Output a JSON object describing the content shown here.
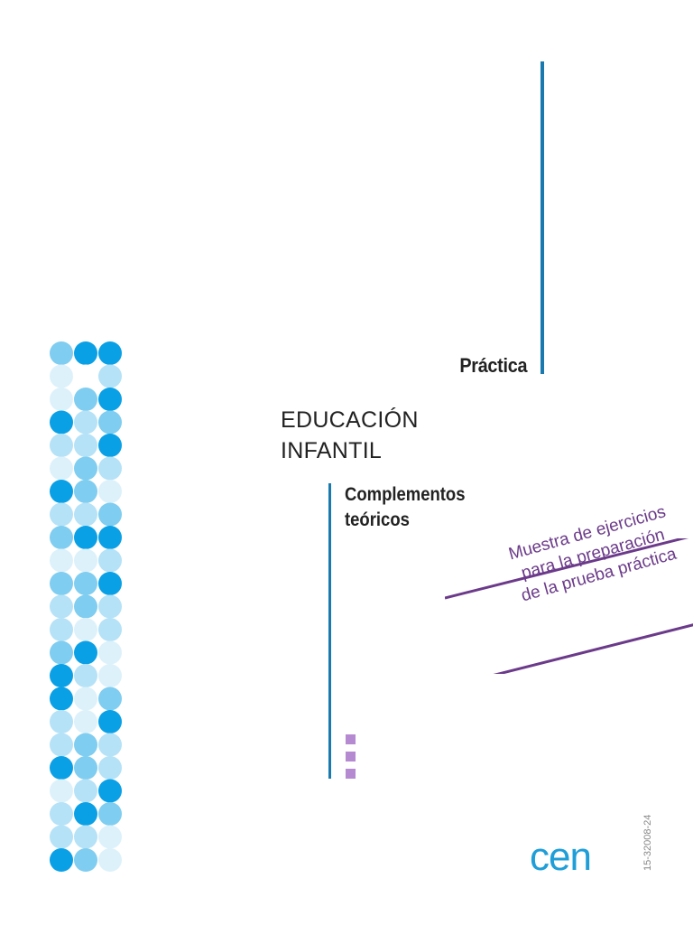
{
  "header": {
    "practica": "Práctica"
  },
  "title": {
    "line1": "EDUCACIÓN",
    "line2": "INFANTIL"
  },
  "subtitle": {
    "line1": "Complementos",
    "line2": "teóricos"
  },
  "stripe": {
    "line1": "Muestra de ejercicios",
    "line2": "para la preparación",
    "line3": "de la prueba práctica"
  },
  "publisher": {
    "logo": "cen",
    "code": "15-32008-24"
  },
  "colors": {
    "accent_blue": "#1a7ab0",
    "purple": "#6b3a8a",
    "logo_blue": "#1f9ed8"
  },
  "dot_pattern": {
    "rows": [
      [
        "mid",
        "dark",
        "dark"
      ],
      [
        "vlight",
        "",
        "light"
      ],
      [
        "vlight",
        "mid",
        "dark"
      ],
      [
        "dark",
        "light",
        "mid"
      ],
      [
        "light",
        "light",
        "dark"
      ],
      [
        "vlight",
        "mid",
        "light"
      ],
      [
        "dark",
        "mid",
        "vlight"
      ],
      [
        "light",
        "light",
        "mid"
      ],
      [
        "mid",
        "dark",
        "dark"
      ],
      [
        "vlight",
        "vlight",
        "light"
      ],
      [
        "mid",
        "mid",
        "dark"
      ],
      [
        "light",
        "mid",
        "light"
      ],
      [
        "light",
        "vlight",
        "light"
      ],
      [
        "mid",
        "dark",
        "vlight"
      ],
      [
        "dark",
        "light",
        "vlight"
      ],
      [
        "dark",
        "vlight",
        "mid"
      ],
      [
        "light",
        "vlight",
        "dark"
      ],
      [
        "light",
        "mid",
        "light"
      ],
      [
        "dark",
        "mid",
        "light"
      ],
      [
        "vlight",
        "light",
        "dark"
      ],
      [
        "light",
        "dark",
        "mid"
      ],
      [
        "light",
        "light",
        "vlight"
      ],
      [
        "dark",
        "mid",
        "vlight"
      ]
    ]
  }
}
